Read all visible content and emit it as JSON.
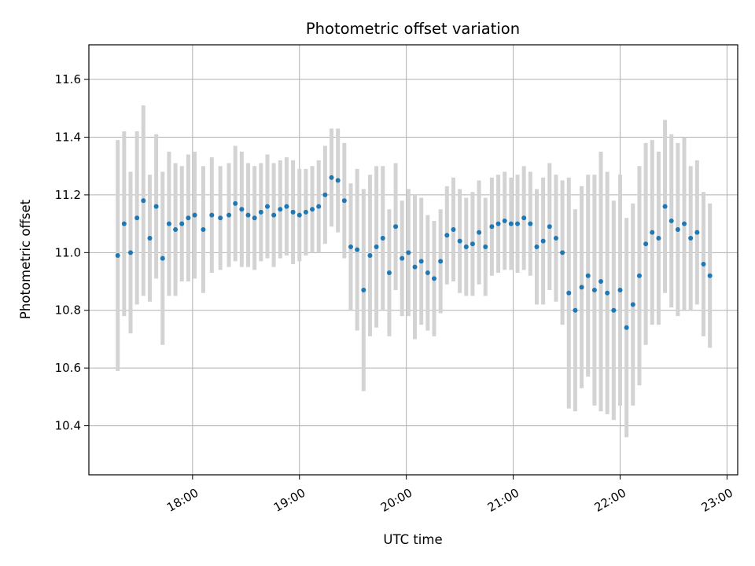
{
  "chart_data": {
    "type": "scatter",
    "title": "Photometric offset variation",
    "xlabel": "UTC time",
    "ylabel": "Photometric offset",
    "x_unit": "UTC hour",
    "xlim": [
      17.03,
      23.1
    ],
    "ylim": [
      10.23,
      11.72
    ],
    "grid": true,
    "x_ticks": [
      {
        "value": 18,
        "label": "18:00"
      },
      {
        "value": 19,
        "label": "19:00"
      },
      {
        "value": 20,
        "label": "20:00"
      },
      {
        "value": 21,
        "label": "21:00"
      },
      {
        "value": 22,
        "label": "22:00"
      },
      {
        "value": 23,
        "label": "23:00"
      }
    ],
    "y_ticks": [
      {
        "value": 10.4,
        "label": "10.4"
      },
      {
        "value": 10.6,
        "label": "10.6"
      },
      {
        "value": 10.8,
        "label": "10.8"
      },
      {
        "value": 11.0,
        "label": "11.0"
      },
      {
        "value": 11.2,
        "label": "11.2"
      },
      {
        "value": 11.4,
        "label": "11.4"
      },
      {
        "value": 11.6,
        "label": "11.6"
      }
    ],
    "colors": {
      "points": "#1f77b4",
      "errorbars": "#d3d3d3",
      "grid": "#b0b0b0"
    },
    "series": [
      {
        "x": [
          17.3,
          17.36,
          17.42,
          17.48,
          17.54,
          17.6,
          17.66,
          17.72,
          17.78,
          17.84,
          17.9,
          17.96,
          18.02,
          18.1,
          18.18,
          18.26,
          18.34,
          18.4,
          18.46,
          18.52,
          18.58,
          18.64,
          18.7,
          18.76,
          18.82,
          18.88,
          18.94,
          19.0,
          19.06,
          19.12,
          19.18,
          19.24,
          19.3,
          19.36,
          19.42,
          19.48,
          19.54,
          19.6,
          19.66,
          19.72,
          19.78,
          19.84,
          19.9,
          19.96,
          20.02,
          20.08,
          20.14,
          20.2,
          20.26,
          20.32,
          20.38,
          20.44,
          20.5,
          20.56,
          20.62,
          20.68,
          20.74,
          20.8,
          20.86,
          20.92,
          20.98,
          21.04,
          21.1,
          21.16,
          21.22,
          21.28,
          21.34,
          21.4,
          21.46,
          21.52,
          21.58,
          21.64,
          21.7,
          21.76,
          21.82,
          21.88,
          21.94,
          22.0,
          22.06,
          22.12,
          22.18,
          22.24,
          22.3,
          22.36,
          22.42,
          22.48,
          22.54,
          22.6,
          22.66,
          22.72,
          22.78,
          22.84
        ],
        "y": [
          10.99,
          11.1,
          11.0,
          11.12,
          11.18,
          11.05,
          11.16,
          10.98,
          11.1,
          11.08,
          11.1,
          11.12,
          11.13,
          11.08,
          11.13,
          11.12,
          11.13,
          11.17,
          11.15,
          11.13,
          11.12,
          11.14,
          11.16,
          11.13,
          11.15,
          11.16,
          11.14,
          11.13,
          11.14,
          11.15,
          11.16,
          11.2,
          11.26,
          11.25,
          11.18,
          11.02,
          11.01,
          10.87,
          10.99,
          11.02,
          11.05,
          10.93,
          11.09,
          10.98,
          11.0,
          10.95,
          10.97,
          10.93,
          10.91,
          10.97,
          11.06,
          11.08,
          11.04,
          11.02,
          11.03,
          11.07,
          11.02,
          11.09,
          11.1,
          11.11,
          11.1,
          11.1,
          11.12,
          11.1,
          11.02,
          11.04,
          11.09,
          11.05,
          11.0,
          10.86,
          10.8,
          10.88,
          10.92,
          10.87,
          10.9,
          10.86,
          10.8,
          10.87,
          10.74,
          10.82,
          10.92,
          11.03,
          11.07,
          11.05,
          11.16,
          11.11,
          11.08,
          11.1,
          11.05,
          11.07,
          10.96,
          10.92
        ],
        "err": [
          0.4,
          0.32,
          0.28,
          0.3,
          0.33,
          0.22,
          0.25,
          0.3,
          0.25,
          0.23,
          0.2,
          0.22,
          0.22,
          0.22,
          0.2,
          0.18,
          0.18,
          0.2,
          0.2,
          0.18,
          0.18,
          0.17,
          0.18,
          0.18,
          0.17,
          0.17,
          0.18,
          0.16,
          0.15,
          0.15,
          0.16,
          0.17,
          0.17,
          0.18,
          0.2,
          0.22,
          0.28,
          0.35,
          0.28,
          0.28,
          0.25,
          0.22,
          0.22,
          0.2,
          0.22,
          0.25,
          0.22,
          0.2,
          0.2,
          0.18,
          0.17,
          0.18,
          0.18,
          0.17,
          0.18,
          0.18,
          0.17,
          0.17,
          0.17,
          0.17,
          0.16,
          0.17,
          0.18,
          0.18,
          0.2,
          0.22,
          0.22,
          0.22,
          0.25,
          0.4,
          0.35,
          0.35,
          0.35,
          0.4,
          0.45,
          0.42,
          0.38,
          0.4,
          0.38,
          0.35,
          0.38,
          0.35,
          0.32,
          0.3,
          0.3,
          0.3,
          0.3,
          0.3,
          0.25,
          0.25,
          0.25,
          0.25
        ]
      }
    ]
  }
}
